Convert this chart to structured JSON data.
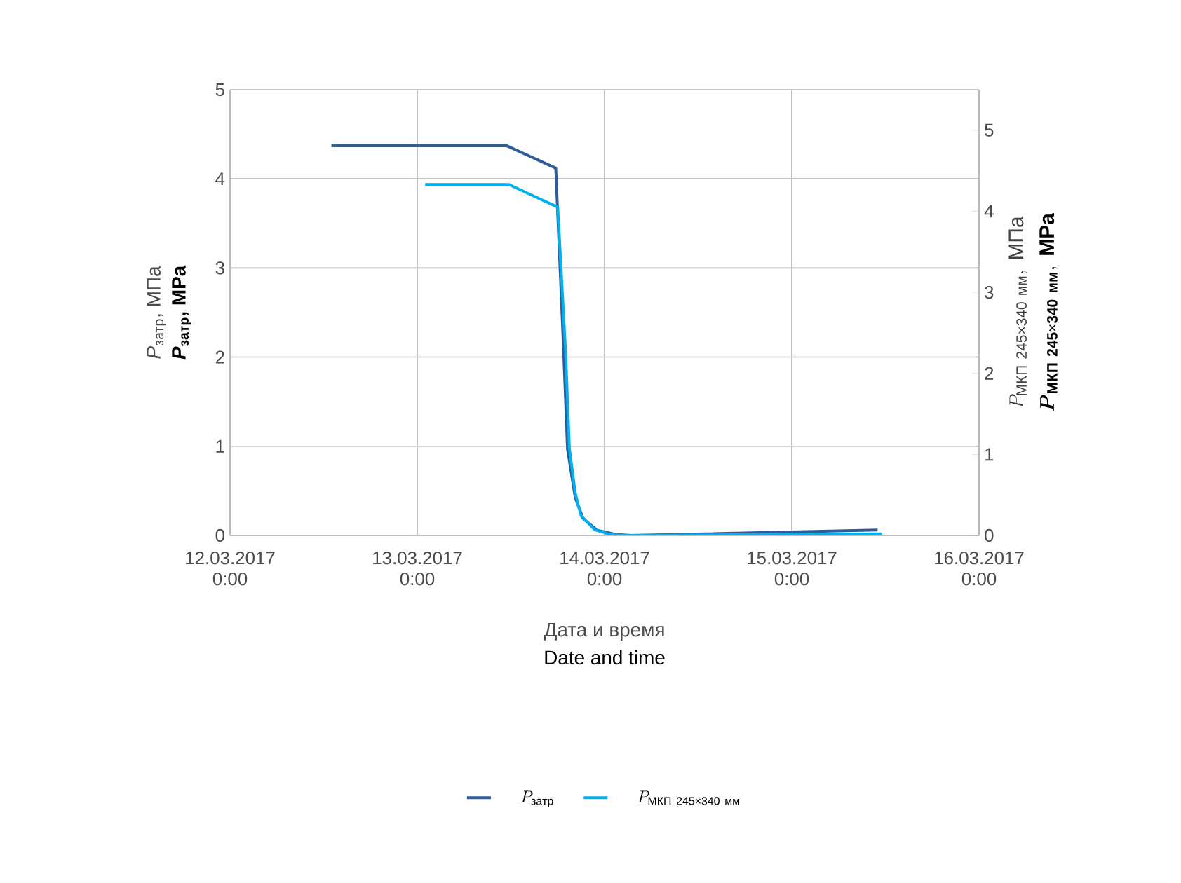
{
  "chart_data": {
    "type": "line",
    "xlabel": [
      "Дата и время",
      "Date and time"
    ],
    "ylabel": [
      "*P*$_{затр}$, МПа",
      "*P*$_{затр}$, MPa"
    ],
    "y2label": [
      "P_{\\mathrm{МКП\\ 245×340\\ мм}},\\ \\mathrm{МПа}",
      "\\boldsymbol{P}_{\\mathbf{МКП\\ 245×340\\ мм}},\\ \\mathbf{MPa}"
    ],
    "xlim": [
      "2017-03-12T00:00",
      "2017-03-16T00:00"
    ],
    "xticks": [
      {
        "value": "2017-03-12T00:00",
        "label": "12.03.2017 0:00"
      },
      {
        "value": "2017-03-13T00:00",
        "label": "13.03.2017 0:00"
      },
      {
        "value": "2017-03-14T00:00",
        "label": "14.03.2017 0:00"
      },
      {
        "value": "2017-03-15T00:00",
        "label": "15.03.2017 0:00"
      },
      {
        "value": "2017-03-16T00:00",
        "label": "16.03.2017 0:00"
      }
    ],
    "ylim": [
      0,
      5
    ],
    "yticks": [
      0,
      1,
      2,
      3,
      4,
      5
    ],
    "y2lim": [
      0,
      5.5
    ],
    "y2ticks": [
      0,
      1,
      2,
      3,
      4,
      5
    ],
    "grid": true,
    "legend": "bottom",
    "series": [
      {
        "name": "P_{\\mathrm{затр}}",
        "color": "#2e5c9a",
        "x": [
          "2017-03-12T13:00",
          "2017-03-13T11:30",
          "2017-03-13T17:45",
          "2017-03-13T18:45",
          "2017-03-13T19:15",
          "2017-03-13T20:15",
          "2017-03-13T21:15",
          "2017-03-13T23:00",
          "2017-03-14T01:30",
          "2017-03-14T03:30",
          "2017-03-15T11:00"
        ],
        "values": [
          4.37,
          4.37,
          4.12,
          2.08,
          0.97,
          0.42,
          0.19,
          0.06,
          0.01,
          0,
          0.06
        ]
      },
      {
        "name": "P_{\\mathrm{МКП\\ 245×340\\ мм}}",
        "color": "#00b0f0",
        "axis": "y2",
        "x": [
          "2017-03-13T01:00",
          "2017-03-13T11:45",
          "2017-03-13T18:00",
          "2017-03-13T19:00",
          "2017-03-13T19:30",
          "2017-03-13T20:15",
          "2017-03-13T21:00",
          "2017-03-13T22:45",
          "2017-03-14T00:45",
          "2017-03-14T02:30",
          "2017-03-15T11:30"
        ],
        "values": [
          4.33,
          4.33,
          4.05,
          2.28,
          1.07,
          0.52,
          0.24,
          0.07,
          0.01,
          0,
          0.02
        ]
      }
    ]
  }
}
